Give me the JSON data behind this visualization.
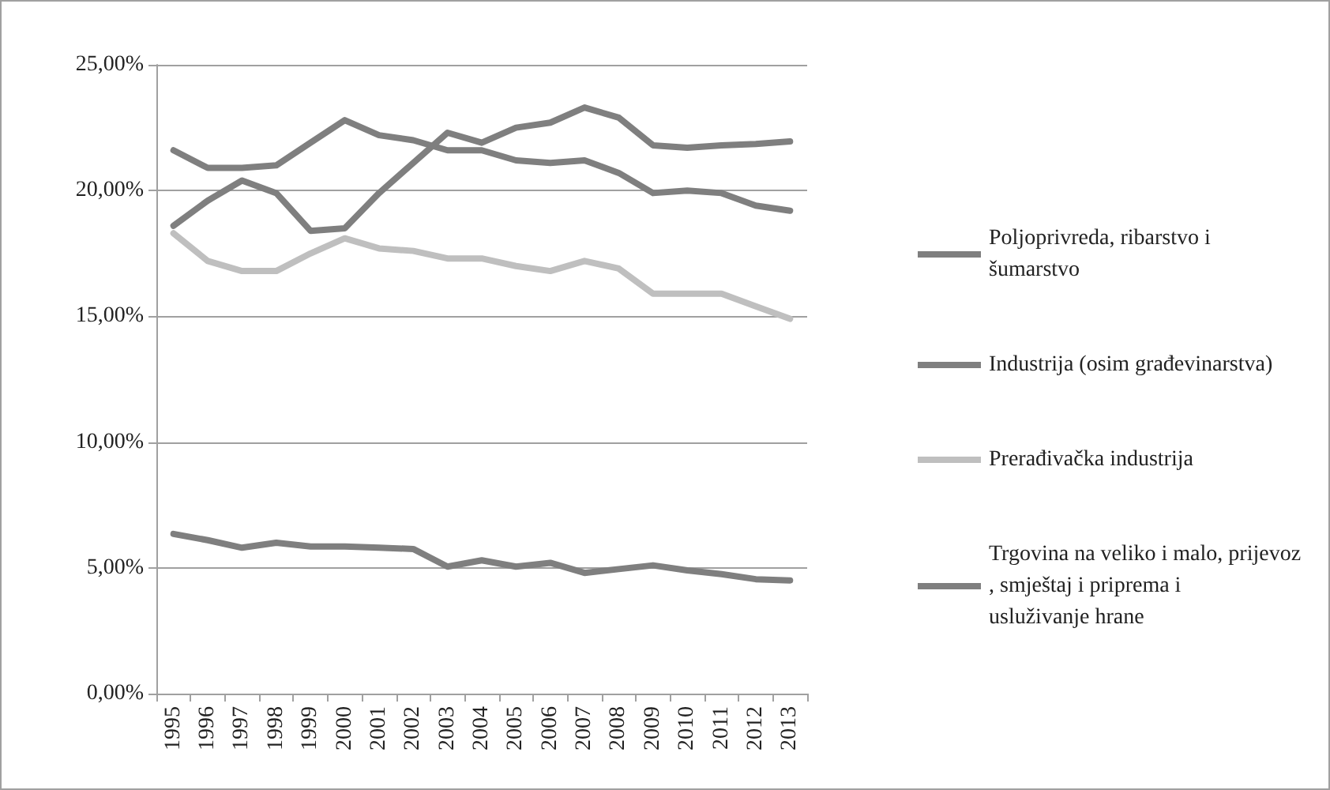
{
  "chart_data": {
    "type": "line",
    "categories": [
      "1995",
      "1996",
      "1997",
      "1998",
      "1999",
      "2000",
      "2001",
      "2002",
      "2003",
      "2004",
      "2005",
      "2006",
      "2007",
      "2008",
      "2009",
      "2010",
      "2011",
      "2012",
      "2013"
    ],
    "series": [
      {
        "name": "Poljoprivreda, ribarstvo i šumarstvo",
        "color": "#7f7f7f",
        "values": [
          6.35,
          6.1,
          5.8,
          6.0,
          5.85,
          5.85,
          5.8,
          5.75,
          5.05,
          5.3,
          5.05,
          5.2,
          4.8,
          4.95,
          5.1,
          4.9,
          4.75,
          4.55,
          4.5
        ]
      },
      {
        "name": "Industrija (osim građevinarstva)",
        "color": "#7f7f7f",
        "values": [
          21.6,
          20.9,
          20.9,
          21.0,
          21.9,
          22.8,
          22.2,
          22.0,
          21.6,
          21.6,
          21.2,
          21.1,
          21.2,
          20.7,
          19.9,
          20.0,
          19.9,
          19.4,
          19.2
        ]
      },
      {
        "name": "Prerađivačka industrija",
        "color": "#bfbfbf",
        "values": [
          18.3,
          17.2,
          16.8,
          16.8,
          17.5,
          18.1,
          17.7,
          17.6,
          17.3,
          17.3,
          17.0,
          16.8,
          17.2,
          16.9,
          15.9,
          15.9,
          15.9,
          15.4,
          14.9
        ]
      },
      {
        "name": "Trgovina na veliko i malo, prijevoz, smještaj i priprema i usluživanje hrane",
        "color": "#7f7f7f",
        "values": [
          18.6,
          19.6,
          20.4,
          19.9,
          18.4,
          18.5,
          19.9,
          21.1,
          22.3,
          21.9,
          22.5,
          22.7,
          23.3,
          22.9,
          21.8,
          21.7,
          21.8,
          21.85,
          21.95
        ]
      }
    ],
    "ylim": [
      0,
      25
    ],
    "yticks": [
      {
        "value": 0,
        "label": "0,00%"
      },
      {
        "value": 5,
        "label": "5,00%"
      },
      {
        "value": 10,
        "label": "10,00%"
      },
      {
        "value": 15,
        "label": "15,00%"
      },
      {
        "value": 20,
        "label": "20,00%"
      },
      {
        "value": 25,
        "label": "25,00%"
      }
    ],
    "grid": "y",
    "legend": "right",
    "marker": "none",
    "line_style": "solid"
  }
}
